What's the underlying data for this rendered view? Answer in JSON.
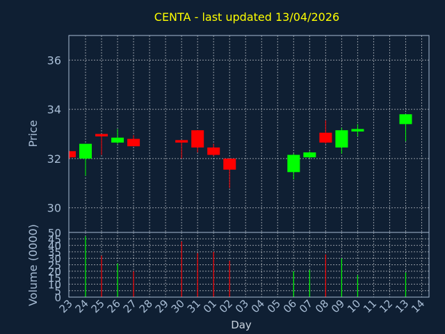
{
  "chart_data": {
    "type": "candlestick",
    "title": "CENTA - last updated 13/04/2026",
    "xlabel": "Day",
    "price_panel": {
      "ylabel": "Price",
      "ylim": [
        29,
        37
      ],
      "yticks": [
        30,
        32,
        34,
        36
      ]
    },
    "volume_panel": {
      "ylabel": "Volume (0000)",
      "ylim": [
        0,
        50
      ],
      "yticks": [
        0,
        5,
        10,
        15,
        20,
        25,
        30,
        35,
        40,
        45,
        50
      ]
    },
    "categories": [
      "23",
      "24",
      "25",
      "26",
      "27",
      "28",
      "29",
      "30",
      "31",
      "01",
      "02",
      "03",
      "04",
      "05",
      "06",
      "07",
      "08",
      "09",
      "10",
      "11",
      "12",
      "13",
      "14"
    ],
    "candles": [
      {
        "x": "23",
        "open": 32.3,
        "high": 32.3,
        "low": 32.0,
        "close": 32.05
      },
      {
        "x": "24",
        "open": 32.0,
        "high": 32.6,
        "low": 31.3,
        "close": 32.6
      },
      {
        "x": "25",
        "open": 33.0,
        "high": 33.0,
        "low": 32.15,
        "close": 32.9
      },
      {
        "x": "26",
        "open": 32.65,
        "high": 33.2,
        "low": 32.6,
        "close": 32.85
      },
      {
        "x": "27",
        "open": 32.8,
        "high": 32.95,
        "low": 32.5,
        "close": 32.5
      },
      {
        "x": "30",
        "open": 32.75,
        "high": 32.75,
        "low": 32.0,
        "close": 32.65
      },
      {
        "x": "31",
        "open": 33.15,
        "high": 33.15,
        "low": 32.25,
        "close": 32.45
      },
      {
        "x": "01",
        "open": 32.45,
        "high": 32.6,
        "low": 32.1,
        "close": 32.15
      },
      {
        "x": "02",
        "open": 32.0,
        "high": 32.0,
        "low": 30.8,
        "close": 31.55
      },
      {
        "x": "06",
        "open": 31.45,
        "high": 32.2,
        "low": 31.15,
        "close": 32.15
      },
      {
        "x": "07",
        "open": 32.05,
        "high": 32.3,
        "low": 32.0,
        "close": 32.25
      },
      {
        "x": "08",
        "open": 33.05,
        "high": 33.55,
        "low": 32.6,
        "close": 32.65
      },
      {
        "x": "09",
        "open": 32.45,
        "high": 33.25,
        "low": 32.2,
        "close": 33.15
      },
      {
        "x": "10",
        "open": 33.1,
        "high": 33.4,
        "low": 32.9,
        "close": 33.2
      },
      {
        "x": "13",
        "open": 33.4,
        "high": 33.8,
        "low": 32.7,
        "close": 33.8
      }
    ],
    "volume": [
      {
        "x": "24",
        "value": 47,
        "color": "#00ff00"
      },
      {
        "x": "25",
        "value": 32,
        "color": "#ff0000"
      },
      {
        "x": "26",
        "value": 26,
        "color": "#00ff00"
      },
      {
        "x": "27",
        "value": 20,
        "color": "#ff0000"
      },
      {
        "x": "30",
        "value": 43,
        "color": "#ff0000"
      },
      {
        "x": "31",
        "value": 34,
        "color": "#ff0000"
      },
      {
        "x": "01",
        "value": 35,
        "color": "#ff0000"
      },
      {
        "x": "02",
        "value": 28,
        "color": "#ff0000"
      },
      {
        "x": "06",
        "value": 20,
        "color": "#00ff00"
      },
      {
        "x": "07",
        "value": 21,
        "color": "#00ff00"
      },
      {
        "x": "08",
        "value": 33,
        "color": "#ff0000"
      },
      {
        "x": "09",
        "value": 30,
        "color": "#00ff00"
      },
      {
        "x": "10",
        "value": 17,
        "color": "#00ff00"
      },
      {
        "x": "13",
        "value": 19,
        "color": "#00ff00"
      }
    ],
    "up_color": "#00ff00",
    "down_color": "#ff0000",
    "background": "#0f1f33",
    "grid": true
  }
}
